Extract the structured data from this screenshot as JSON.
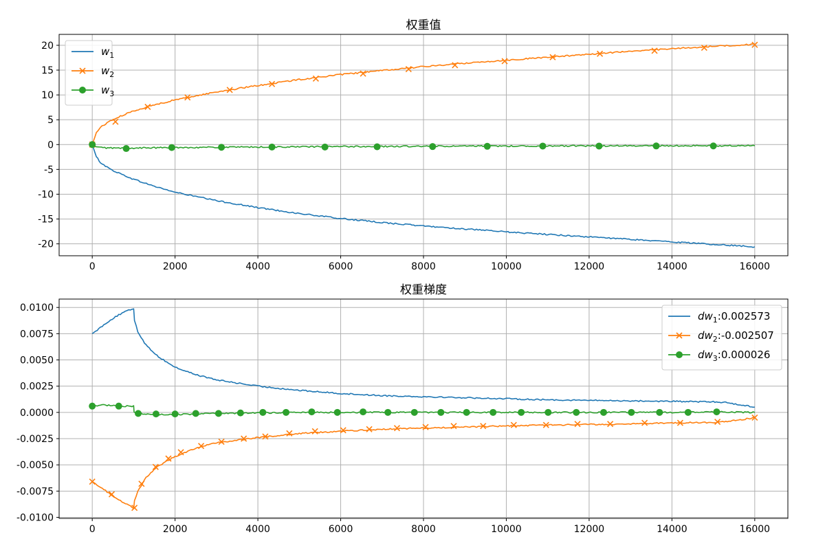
{
  "chart_data": [
    {
      "type": "line",
      "title": "权重值",
      "xlabel": "",
      "ylabel": "",
      "xlim": [
        -800,
        16800
      ],
      "ylim": [
        -22.4,
        22.2
      ],
      "xticks": [
        0,
        2000,
        4000,
        6000,
        8000,
        10000,
        12000,
        14000,
        16000
      ],
      "xtick_labels": [
        "0",
        "2000",
        "4000",
        "6000",
        "8000",
        "10000",
        "12000",
        "14000",
        "16000"
      ],
      "yticks": [
        20,
        15,
        10,
        5,
        0,
        -5,
        -10,
        -15,
        -20
      ],
      "ytick_labels": [
        "20",
        "15",
        "10",
        "5",
        "0",
        "-5",
        "-10",
        "-15",
        "-20"
      ],
      "grid": true,
      "legend_position": "top-left",
      "series": [
        {
          "name": "w1",
          "legend_base": "w",
          "legend_sub": "1",
          "legend_value": "",
          "color": "#1f77b4",
          "marker": "none",
          "x": [
            0,
            100,
            200,
            400,
            600,
            1000,
            1500,
            2000,
            3000,
            4000,
            5000,
            6000,
            7000,
            8000,
            9000,
            10000,
            11000,
            12000,
            13000,
            14000,
            15000,
            16000
          ],
          "y": [
            0,
            -2.5,
            -3.6,
            -4.8,
            -5.6,
            -7.0,
            -8.4,
            -9.6,
            -11.3,
            -12.7,
            -13.9,
            -14.9,
            -15.7,
            -16.4,
            -17.0,
            -17.6,
            -18.1,
            -18.6,
            -19.1,
            -19.6,
            -20.1,
            -20.6
          ]
        },
        {
          "name": "w2",
          "legend_base": "w",
          "legend_sub": "2",
          "legend_value": "",
          "color": "#ff7f0e",
          "marker": "x",
          "x": [
            0,
            100,
            200,
            400,
            600,
            1000,
            1500,
            2000,
            3000,
            4000,
            5000,
            6000,
            7000,
            8000,
            9000,
            10000,
            11000,
            12000,
            13000,
            14000,
            15000,
            16000
          ],
          "y": [
            0,
            2.4,
            3.5,
            4.6,
            5.4,
            6.8,
            8.0,
            9.0,
            10.6,
            11.9,
            13.1,
            14.1,
            14.9,
            15.7,
            16.4,
            17.0,
            17.6,
            18.2,
            18.8,
            19.3,
            19.8,
            20.2
          ],
          "marker_x": [
            0,
            560,
            1340,
            2300,
            3320,
            4340,
            5400,
            6540,
            7640,
            8760,
            9960,
            11120,
            12260,
            13580,
            14780,
            16000
          ],
          "marker_y": [
            0,
            4.6,
            7.6,
            9.5,
            11.0,
            12.2,
            13.3,
            14.3,
            15.2,
            16.0,
            16.8,
            17.6,
            18.3,
            18.9,
            19.5,
            20.1
          ]
        },
        {
          "name": "w3",
          "legend_base": "w",
          "legend_sub": "3",
          "legend_value": "",
          "color": "#2ca02c",
          "marker": "o",
          "x": [
            0,
            100,
            300,
            600,
            800,
            1000,
            1500,
            2000,
            3000,
            4000,
            5000,
            6000,
            7000,
            8000,
            9000,
            10000,
            11000,
            12000,
            13000,
            14000,
            15000,
            16000
          ],
          "y": [
            0,
            -0.5,
            -0.65,
            -0.7,
            -0.75,
            -0.7,
            -0.65,
            -0.6,
            -0.55,
            -0.5,
            -0.45,
            -0.4,
            -0.38,
            -0.35,
            -0.32,
            -0.3,
            -0.28,
            -0.27,
            -0.26,
            -0.25,
            -0.24,
            -0.23
          ],
          "marker_x": [
            0,
            820,
            1920,
            3120,
            4340,
            5620,
            6880,
            8220,
            9540,
            10880,
            12240,
            13620,
            15000
          ],
          "marker_y": [
            0,
            -0.8,
            -0.6,
            -0.55,
            -0.5,
            -0.5,
            -0.45,
            -0.4,
            -0.35,
            -0.3,
            -0.3,
            -0.28,
            -0.27
          ]
        }
      ]
    },
    {
      "type": "line",
      "title": "权重梯度",
      "xlabel": "",
      "ylabel": "",
      "xlim": [
        -800,
        16800
      ],
      "ylim": [
        -0.0101,
        0.0108
      ],
      "xticks": [
        0,
        2000,
        4000,
        6000,
        8000,
        10000,
        12000,
        14000,
        16000
      ],
      "xtick_labels": [
        "0",
        "2000",
        "4000",
        "6000",
        "8000",
        "10000",
        "12000",
        "14000",
        "16000"
      ],
      "yticks": [
        0.01,
        0.0075,
        0.005,
        0.0025,
        0,
        -0.0025,
        -0.005,
        -0.0075,
        -0.01
      ],
      "ytick_labels": [
        "0.0100",
        "0.0075",
        "0.0050",
        "0.0025",
        "0.0000",
        "-0.0025",
        "-0.0050",
        "-0.0075",
        "-0.0100"
      ],
      "grid": true,
      "legend_position": "top-right",
      "series": [
        {
          "name": "dw1",
          "legend_base": "dw",
          "legend_sub": "1",
          "legend_value": ":0.002573",
          "color": "#1f77b4",
          "marker": "none",
          "x": [
            0,
            200,
            400,
            600,
            800,
            1000,
            1020,
            1100,
            1300,
            1600,
            2000,
            2500,
            3000,
            4000,
            5000,
            6000,
            7000,
            8000,
            9000,
            10000,
            11000,
            12000,
            13000,
            14000,
            15000,
            15300,
            16000
          ],
          "y": [
            0.0075,
            0.0081,
            0.0087,
            0.0092,
            0.0096,
            0.0099,
            0.0088,
            0.0077,
            0.0064,
            0.0053,
            0.0043,
            0.0036,
            0.0031,
            0.0025,
            0.0021,
            0.0018,
            0.0016,
            0.0015,
            0.0014,
            0.0013,
            0.0012,
            0.00115,
            0.0011,
            0.00105,
            0.001,
            0.00095,
            0.0005
          ]
        },
        {
          "name": "dw2",
          "legend_base": "dw",
          "legend_sub": "2",
          "legend_value": ":-0.002507",
          "color": "#ff7f0e",
          "marker": "x",
          "x": [
            0,
            200,
            400,
            600,
            800,
            1000,
            1020,
            1100,
            1300,
            1600,
            2000,
            2500,
            3000,
            4000,
            5000,
            6000,
            7000,
            8000,
            9000,
            10000,
            11000,
            12000,
            13000,
            14000,
            15000,
            15300,
            16000
          ],
          "y": [
            -0.0066,
            -0.0071,
            -0.0077,
            -0.0082,
            -0.0087,
            -0.0091,
            -0.0084,
            -0.0075,
            -0.0062,
            -0.0051,
            -0.0042,
            -0.0034,
            -0.0029,
            -0.0024,
            -0.002,
            -0.0018,
            -0.0016,
            -0.0015,
            -0.0014,
            -0.0013,
            -0.0012,
            -0.00115,
            -0.0011,
            -0.001,
            -0.00095,
            -0.0009,
            -0.0005
          ],
          "marker_x": [
            0,
            470,
            1020,
            1190,
            1530,
            1840,
            2140,
            2630,
            3120,
            3660,
            4180,
            4760,
            5380,
            6060,
            6690,
            7360,
            8050,
            8730,
            9440,
            10180,
            10960,
            11720,
            12510,
            13340,
            14200,
            15100,
            16000
          ],
          "marker_y": [
            -0.0066,
            -0.0078,
            -0.0091,
            -0.0068,
            -0.0052,
            -0.0044,
            -0.0038,
            -0.0032,
            -0.0028,
            -0.0025,
            -0.0023,
            -0.002,
            -0.0018,
            -0.0017,
            -0.0016,
            -0.0015,
            -0.0014,
            -0.0013,
            -0.0013,
            -0.0012,
            -0.0012,
            -0.0011,
            -0.0011,
            -0.001,
            -0.001,
            -0.0009,
            -0.0005
          ]
        },
        {
          "name": "dw3",
          "legend_base": "dw",
          "legend_sub": "3",
          "legend_value": ":0.000026",
          "color": "#2ca02c",
          "marker": "o",
          "x": [
            0,
            200,
            400,
            600,
            800,
            1000,
            1010,
            1100,
            1300,
            1600,
            2000,
            3000,
            4000,
            5000,
            6000,
            7000,
            8000,
            9000,
            10000,
            11000,
            12000,
            13000,
            14000,
            15000,
            16000
          ],
          "y": [
            0.0006,
            0.0007,
            0.00068,
            0.00062,
            0.0006,
            0.0006,
            0.0,
            -0.0001,
            -0.00018,
            -0.00022,
            -0.0002,
            -0.0001,
            -5e-05,
            0.0,
            0.0,
            0.0,
            0.0,
            0.0,
            0.0,
            0.0,
            0.0,
            0.0,
            0.0,
            5e-05,
            0.0
          ],
          "marker_x": [
            0,
            640,
            1110,
            1540,
            2000,
            2500,
            3050,
            3580,
            4120,
            4680,
            5300,
            5920,
            6540,
            7140,
            7780,
            8420,
            9040,
            9680,
            10360,
            11010,
            11690,
            12350,
            13020,
            13700,
            14390,
            15080
          ],
          "marker_y": [
            0.0006,
            0.0006,
            -0.0001,
            -0.00015,
            -0.00015,
            -0.0001,
            -0.0001,
            -5e-05,
            0.0,
            0.0,
            5e-05,
            0.0,
            5e-05,
            0.0,
            0.0,
            0.0,
            0.0,
            0.0,
            0.0,
            0.0,
            0.0,
            0.0,
            0.0,
            0.0,
            0.0,
            5e-05
          ]
        }
      ]
    }
  ]
}
